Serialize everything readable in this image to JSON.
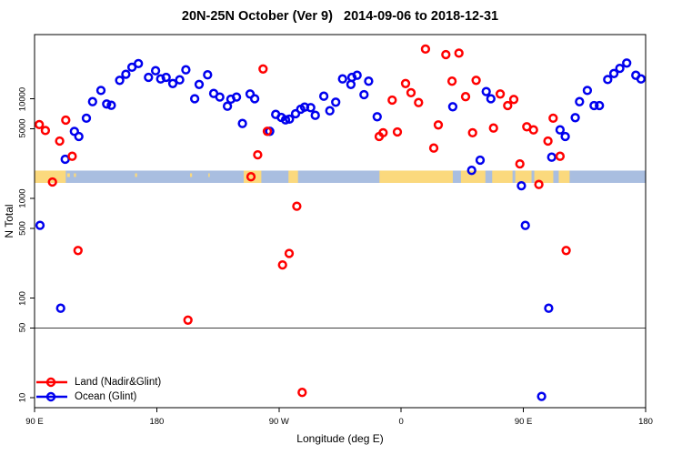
{
  "title": "20N-25N October (Ver 9)   2014-09-06 to 2018-12-31",
  "axes": {
    "x": {
      "label": "Longitude (deg E)",
      "span_deg": 450,
      "note": "axis runs eastward from 90E and wraps: 90E > 180 > 90W > 0 > 90E > 180",
      "ticks": [
        {
          "t": 0,
          "label": "90 E"
        },
        {
          "t": 90,
          "label": "180"
        },
        {
          "t": 180,
          "label": "90 W"
        },
        {
          "t": 270,
          "label": "0"
        },
        {
          "t": 360,
          "label": "90 E"
        },
        {
          "t": 450,
          "label": "180"
        }
      ]
    },
    "y": {
      "label": "N Total",
      "scale": "log10",
      "ticks": [
        {
          "v": 10,
          "label": "10"
        },
        {
          "v": 50,
          "label": "50"
        },
        {
          "v": 100,
          "label": "100"
        },
        {
          "v": 500,
          "label": "500"
        },
        {
          "v": 1000,
          "label": "1000"
        },
        {
          "v": 5000,
          "label": "5000"
        },
        {
          "v": 10000,
          "label": "10000"
        }
      ]
    }
  },
  "reference_line": {
    "value": 50,
    "color": "#404040"
  },
  "map_strip": {
    "ocean_color": "#A9BEE0",
    "land_color": "#FBD97D",
    "value_band": [
      1430,
      1900
    ],
    "land_segments_deg": [
      [
        0,
        23
      ],
      [
        154,
        167
      ],
      [
        187,
        194
      ],
      [
        254,
        308
      ],
      [
        314,
        332
      ],
      [
        337,
        382
      ],
      [
        386,
        394
      ]
    ],
    "ocean_gaps_deg": [
      [
        352,
        354
      ],
      [
        366,
        368
      ]
    ],
    "island_specks_deg": [
      [
        24,
        26
      ],
      [
        29,
        30.5
      ],
      [
        74,
        75.5
      ],
      [
        114.5,
        116
      ],
      [
        128,
        129
      ]
    ]
  },
  "legend": {
    "items": [
      {
        "label": "Land (Nadir&Glint)",
        "color": "#FF0000",
        "series": "land"
      },
      {
        "label": "Ocean (Glint)",
        "color": "#0000EE",
        "series": "ocean"
      }
    ]
  },
  "chart_data": {
    "type": "scatter",
    "title": "20N-25N October (Ver 9)   2014-09-06 to 2018-12-31",
    "xlabel": "Longitude (deg E)",
    "ylabel": "N Total",
    "x_unit": "degrees east of 90E along the wrapped axis (0..450)",
    "y_range_displayed": [
      8,
      44000
    ],
    "grid": false,
    "legend_position": "bottom-left",
    "series": [
      {
        "name": "Land (Nadir&Glint)",
        "color": "#FF0000",
        "points": [
          [
            -2.5,
            5500
          ],
          [
            3.5,
            5500
          ],
          [
            8,
            4800
          ],
          [
            13.2,
            1460
          ],
          [
            18.5,
            3760
          ],
          [
            23,
            6100
          ],
          [
            27.7,
            2650
          ],
          [
            32,
            300
          ],
          [
            113,
            60
          ],
          [
            159.4,
            1650
          ],
          [
            164.3,
            2740
          ],
          [
            168.3,
            19900
          ],
          [
            171.4,
            4710
          ],
          [
            182.6,
            215
          ],
          [
            187.5,
            280
          ],
          [
            193.1,
            835
          ],
          [
            197.1,
            11.3
          ],
          [
            253.8,
            4180
          ],
          [
            256.7,
            4550
          ],
          [
            263.4,
            9690
          ],
          [
            267.2,
            4640
          ],
          [
            273.2,
            14200
          ],
          [
            277.2,
            11500
          ],
          [
            282.8,
            9150
          ],
          [
            287.9,
            31500
          ],
          [
            294,
            3200
          ],
          [
            297.3,
            5460
          ],
          [
            302.9,
            27700
          ],
          [
            307.4,
            15000
          ],
          [
            312.5,
            28700
          ],
          [
            317.4,
            10500
          ],
          [
            322.6,
            4550
          ],
          [
            325.2,
            15300
          ],
          [
            338,
            5080
          ],
          [
            342.9,
            11150
          ],
          [
            348.4,
            8540
          ],
          [
            352.9,
            9830
          ],
          [
            357.4,
            2220
          ],
          [
            362.5,
            5230
          ],
          [
            367.4,
            4870
          ],
          [
            371.4,
            1380
          ],
          [
            378.1,
            3760
          ],
          [
            381.9,
            6370
          ],
          [
            387,
            2650
          ],
          [
            391.5,
            300
          ]
        ]
      },
      {
        "name": "Ocean (Glint)",
        "color": "#0000EE",
        "points": [
          [
            4,
            537
          ],
          [
            19.2,
            79
          ],
          [
            22.6,
            2470
          ],
          [
            29.3,
            4700
          ],
          [
            32.6,
            4180
          ],
          [
            38.2,
            6370
          ],
          [
            42.7,
            9350
          ],
          [
            48.9,
            12100
          ],
          [
            53.1,
            8850
          ],
          [
            56.5,
            8590
          ],
          [
            62.7,
            15300
          ],
          [
            67.2,
            17600
          ],
          [
            71.7,
            20700
          ],
          [
            76.5,
            22500
          ],
          [
            83.9,
            16400
          ],
          [
            89.1,
            19100
          ],
          [
            92.9,
            15800
          ],
          [
            96.9,
            16400
          ],
          [
            101.8,
            14200
          ],
          [
            106.9,
            15500
          ],
          [
            111.4,
            19500
          ],
          [
            117.9,
            10000
          ],
          [
            121.2,
            13900
          ],
          [
            127.4,
            17400
          ],
          [
            131.9,
            11300
          ],
          [
            136.4,
            10400
          ],
          [
            142,
            8420
          ],
          [
            144.6,
            9890
          ],
          [
            148.7,
            10400
          ],
          [
            153.1,
            5640
          ],
          [
            158.7,
            11150
          ],
          [
            162.1,
            10000
          ],
          [
            173.2,
            4710
          ],
          [
            177.6,
            6960
          ],
          [
            181.7,
            6500
          ],
          [
            184.8,
            6140
          ],
          [
            187.7,
            6240
          ],
          [
            192.2,
            7070
          ],
          [
            196,
            7850
          ],
          [
            198.9,
            8240
          ],
          [
            203.4,
            8130
          ],
          [
            206.7,
            6820
          ],
          [
            213,
            10600
          ],
          [
            217.4,
            7570
          ],
          [
            221.8,
            9230
          ],
          [
            226.8,
            15800
          ],
          [
            233,
            13900
          ],
          [
            233.7,
            16400
          ],
          [
            237.5,
            17200
          ],
          [
            242.6,
            11000
          ],
          [
            246,
            15000
          ],
          [
            252.3,
            6590
          ],
          [
            308,
            8310
          ],
          [
            321.9,
            1910
          ],
          [
            328.1,
            2420
          ],
          [
            332.6,
            11800
          ],
          [
            336,
            10000
          ],
          [
            358.5,
            1340
          ],
          [
            361.4,
            536
          ],
          [
            373.4,
            10.3
          ],
          [
            378.6,
            79
          ],
          [
            380.8,
            2590
          ],
          [
            387,
            4870
          ],
          [
            390.8,
            4180
          ],
          [
            398.2,
            6460
          ],
          [
            401.3,
            9350
          ],
          [
            407.1,
            12100
          ],
          [
            412,
            8540
          ],
          [
            416,
            8540
          ],
          [
            422.1,
            15600
          ],
          [
            426.6,
            17900
          ],
          [
            431,
            20200
          ],
          [
            436.1,
            22800
          ],
          [
            442.8,
            17200
          ],
          [
            446.6,
            15800
          ]
        ]
      }
    ]
  }
}
